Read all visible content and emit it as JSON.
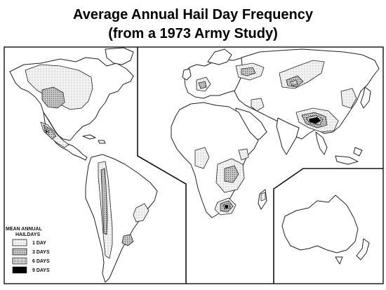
{
  "title_line1": "Average Annual Hail Day Frequency",
  "title_line2": "(from a 1973 Army Study)",
  "legend": {
    "heading_line1": "MEAN ANNUAL",
    "heading_line2": "HAILDAYS",
    "items": [
      {
        "label": "1 DAY",
        "pattern": "light-dotted"
      },
      {
        "label": "3 DAYS",
        "pattern": "medium-stippled"
      },
      {
        "label": "6 DAYS",
        "pattern": "dense-stippled"
      },
      {
        "label": "9 DAYS",
        "pattern": "solid-black"
      }
    ]
  },
  "colors": {
    "ink": "#000000",
    "light_fill": "#e6e6e6",
    "medium_fill": "#b3b3b3",
    "background": "#ffffff"
  }
}
